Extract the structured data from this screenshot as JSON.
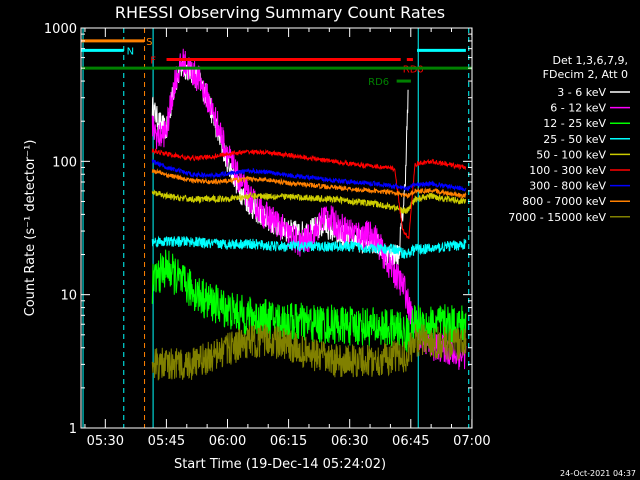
{
  "chart_data": {
    "type": "line",
    "title": "RHESSI Observing Summary Count Rates",
    "xlabel": "Start Time (19-Dec-14 05:24:02)",
    "ylabel": "Count Rate (s⁻¹ detector⁻¹)",
    "yscale": "log",
    "ylim": [
      1,
      1000
    ],
    "xlim_minutes": [
      0,
      96
    ],
    "x_ticks": [
      {
        "label": "05:30",
        "minute": 5.97
      },
      {
        "label": "05:45",
        "minute": 20.97
      },
      {
        "label": "06:00",
        "minute": 35.97
      },
      {
        "label": "06:15",
        "minute": 50.97
      },
      {
        "label": "06:30",
        "minute": 65.97
      },
      {
        "label": "06:45",
        "minute": 80.97
      },
      {
        "label": "07:00",
        "minute": 95.97
      }
    ],
    "y_ticks": [
      {
        "label": "1",
        "value": 1
      },
      {
        "label": "10",
        "value": 10
      },
      {
        "label": "100",
        "value": 100
      },
      {
        "label": "1000",
        "value": 1000
      }
    ],
    "legend": {
      "header": [
        "Det 1,3,6,7,9,",
        "FDecim 2, Att 0"
      ],
      "position": "right"
    },
    "series": [
      {
        "name": "3 - 6 keV",
        "color": "#ffffff",
        "noise": 0.18,
        "x": [
          17.5,
          19,
          21,
          23,
          25,
          27,
          29,
          31,
          33,
          35,
          37,
          39,
          42,
          45,
          48,
          51,
          54,
          57,
          60,
          63,
          66,
          69,
          72,
          75,
          78,
          79.5,
          80.3
        ],
        "y": [
          260,
          200,
          170,
          380,
          520,
          470,
          400,
          300,
          190,
          120,
          85,
          60,
          45,
          38,
          33,
          30,
          29,
          31,
          33,
          28,
          27,
          25,
          25,
          20,
          20,
          60,
          300
        ]
      },
      {
        "name": "6 - 12 keV",
        "color": "#ff00ff",
        "noise": 0.22,
        "x": [
          17.5,
          19,
          21,
          23,
          25,
          27,
          29,
          31,
          33,
          35,
          37,
          39,
          42,
          45,
          48,
          51,
          54,
          57,
          60,
          63,
          66,
          69,
          72,
          75,
          78,
          79.5,
          81,
          83,
          86,
          89,
          92,
          94.5
        ],
        "y": [
          180,
          150,
          170,
          400,
          560,
          480,
          410,
          300,
          210,
          140,
          95,
          70,
          50,
          40,
          35,
          28,
          24,
          28,
          40,
          33,
          30,
          28,
          28,
          18,
          13,
          11,
          7,
          5,
          4,
          4,
          3.5,
          3.5
        ]
      },
      {
        "name": "12 - 25 keV",
        "color": "#00ff00",
        "noise": 0.3,
        "x": [
          17.5,
          19,
          21,
          23,
          25,
          27,
          29,
          31,
          33,
          35,
          37,
          40,
          43,
          46,
          50,
          54,
          58,
          62,
          66,
          70,
          74,
          78,
          80,
          82,
          86,
          90,
          94.5
        ],
        "y": [
          12,
          14,
          16,
          14,
          12,
          11,
          10,
          9,
          8.5,
          8,
          7.5,
          7,
          6.8,
          6.5,
          6.3,
          6.2,
          6,
          6,
          5.8,
          5.8,
          5.6,
          5.5,
          5,
          6,
          6,
          6,
          6
        ]
      },
      {
        "name": "25 - 50 keV",
        "color": "#00ffff",
        "noise": 0.08,
        "x": [
          17.5,
          22,
          27,
          32,
          37,
          42,
          47,
          52,
          57,
          62,
          67,
          72,
          77,
          80,
          82,
          86,
          90,
          94.5
        ],
        "y": [
          25,
          25,
          25,
          24,
          24,
          24,
          23,
          23,
          23,
          23,
          23,
          22,
          22,
          20,
          22,
          22,
          23,
          24
        ]
      },
      {
        "name": "50 - 100 keV",
        "color": "#cccc00",
        "noise": 0.05,
        "x": [
          17.5,
          22,
          27,
          32,
          37,
          42,
          47,
          52,
          57,
          62,
          67,
          72,
          77,
          80,
          82,
          86,
          90,
          94.5
        ],
        "y": [
          58,
          54,
          52,
          52,
          53,
          55,
          55,
          54,
          53,
          52,
          50,
          48,
          45,
          42,
          52,
          55,
          52,
          50
        ]
      },
      {
        "name": "100 - 300 keV",
        "color": "#ff0000",
        "noise": 0.035,
        "x": [
          17.5,
          22,
          27,
          32,
          37,
          42,
          47,
          52,
          57,
          62,
          67,
          72,
          77,
          79,
          80.5,
          82,
          86,
          90,
          94.5
        ],
        "y": [
          120,
          112,
          105,
          108,
          115,
          118,
          115,
          110,
          105,
          100,
          95,
          92,
          88,
          30,
          27,
          95,
          100,
          95,
          90
        ]
      },
      {
        "name": "300 - 800 keV",
        "color": "#0000ff",
        "noise": 0.035,
        "x": [
          17.5,
          22,
          27,
          32,
          37,
          42,
          47,
          52,
          57,
          62,
          67,
          72,
          77,
          80,
          82,
          86,
          90,
          94.5
        ],
        "y": [
          100,
          88,
          80,
          78,
          82,
          85,
          82,
          78,
          75,
          72,
          70,
          68,
          65,
          62,
          67,
          68,
          65,
          62
        ]
      },
      {
        "name": "800 - 7000 keV",
        "color": "#ff8000",
        "noise": 0.035,
        "x": [
          17.5,
          22,
          27,
          32,
          37,
          42,
          47,
          52,
          57,
          62,
          67,
          72,
          77,
          80,
          82,
          86,
          90,
          94.5
        ],
        "y": [
          85,
          78,
          72,
          70,
          72,
          74,
          72,
          68,
          66,
          64,
          62,
          60,
          58,
          55,
          60,
          60,
          58,
          55
        ]
      },
      {
        "name": "7000 - 15000 keV",
        "color": "#808000",
        "noise": 0.25,
        "x": [
          17.5,
          22,
          27,
          32,
          37,
          42,
          47,
          52,
          57,
          62,
          67,
          72,
          77,
          80,
          82,
          86,
          90,
          94.5
        ],
        "y": [
          3,
          3,
          3,
          3.4,
          4,
          4.5,
          4.5,
          4,
          3.5,
          3.2,
          3.2,
          3.2,
          3.4,
          3.5,
          4.5,
          4.5,
          4.3,
          4.2
        ]
      }
    ],
    "state_bars": [
      {
        "label": "S",
        "color": "#ff8000",
        "level": 800,
        "segments": [
          [
            0,
            15.5
          ]
        ]
      },
      {
        "label": "N",
        "color": "#00ffff",
        "level": 680,
        "segments": [
          [
            0,
            10.5
          ],
          [
            82.5,
            94.5
          ]
        ]
      },
      {
        "label": "F",
        "color": "#ff0000",
        "level": 580,
        "segments": [
          [
            21,
            78.5
          ],
          [
            80,
            81.5
          ]
        ]
      },
      {
        "label": "RD0",
        "color": "#ff0000",
        "level": 580,
        "segments": []
      },
      {
        "label": "",
        "color": "#008000",
        "level": 500,
        "segments": [
          [
            0,
            96
          ]
        ]
      },
      {
        "label": "RD6",
        "color": "#008000",
        "level": 400,
        "segments": [
          [
            77.5,
            81
          ]
        ]
      }
    ],
    "vlines": [
      {
        "minute": 0.5,
        "color": "#00ffff",
        "style": "solid"
      },
      {
        "minute": 10.5,
        "color": "#00ffff",
        "style": "dashed"
      },
      {
        "minute": 15.6,
        "color": "#ff8000",
        "style": "dashed"
      },
      {
        "minute": 17.7,
        "color": "#00ffff",
        "style": "solid"
      },
      {
        "minute": 82.8,
        "color": "#00ffff",
        "style": "solid"
      },
      {
        "minute": 95.2,
        "color": "#00ffff",
        "style": "dashed"
      }
    ],
    "timestamp": "24-Oct-2021 04:37"
  }
}
